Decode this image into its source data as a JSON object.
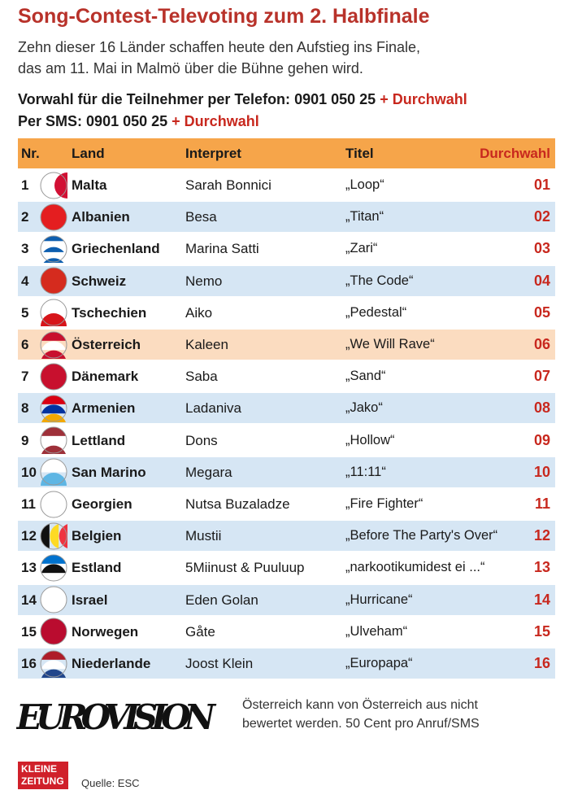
{
  "header": {
    "title": "Song-Contest-Televoting zum 2. Halbfinale",
    "subtitle": [
      "Zehn dieser 16 Länder schaffen heute den Aufstieg ins Finale,",
      "das am 11. Mai in Malmö über die Bühne gehen wird."
    ],
    "phone": {
      "label": "Vorwahl für die Teilnehmer per Telefon:",
      "number": "0901 050 25",
      "suffix": "+ Durchwahl"
    },
    "sms": {
      "label": "Per SMS:",
      "number": "0901 050 25",
      "suffix": "+ Durchwahl"
    }
  },
  "table": {
    "columns": [
      "Nr.",
      "Land",
      "Interpret",
      "Titel",
      "Durchwahl"
    ],
    "rows": [
      [
        "1",
        "Malta",
        "Sarah Bonnici",
        "„Loop“",
        "01"
      ],
      [
        "2",
        "Albanien",
        "Besa",
        "„Titan“",
        "02"
      ],
      [
        "3",
        "Griechenland",
        "Marina Satti",
        "„Zari“",
        "03"
      ],
      [
        "4",
        "Schweiz",
        "Nemo",
        "„The Code“",
        "04"
      ],
      [
        "5",
        "Tschechien",
        "Aiko",
        "„Pedestal“",
        "05"
      ],
      [
        "6",
        "Österreich",
        "Kaleen",
        "„We Will Rave“",
        "06"
      ],
      [
        "7",
        "Dänemark",
        "Saba",
        "„Sand“",
        "07"
      ],
      [
        "8",
        "Armenien",
        "Ladaniva",
        "„Jako“",
        "08"
      ],
      [
        "9",
        "Lettland",
        "Dons",
        "„Hollow“",
        "09"
      ],
      [
        "10",
        "San Marino",
        "Megara",
        "„11:11“",
        "10"
      ],
      [
        "11",
        "Georgien",
        "Nutsa Buzaladze",
        "„Fire Fighter“",
        "11"
      ],
      [
        "12",
        "Belgien",
        "Mustii",
        "„Before The Party's Over“",
        "12"
      ],
      [
        "13",
        "Estland",
        "5Miinust & Puuluup",
        "„narkootikumidest ei ...“",
        "13"
      ],
      [
        "14",
        "Israel",
        "Eden Golan",
        "„Hurricane“",
        "14"
      ],
      [
        "15",
        "Norwegen",
        "Gåte",
        "„Ulveham“",
        "15"
      ],
      [
        "16",
        "Niederlande",
        "Joost Klein",
        "„Europapa“",
        "16"
      ]
    ]
  },
  "footer": {
    "logo": "EUROVISION",
    "note": [
      "Österreich kann von Österreich aus nicht",
      "bewertet werden. 50 Cent pro Anruf/SMS"
    ],
    "brand": [
      "KLEINE",
      "ZEITUNG"
    ],
    "source": "Quelle: ESC"
  }
}
